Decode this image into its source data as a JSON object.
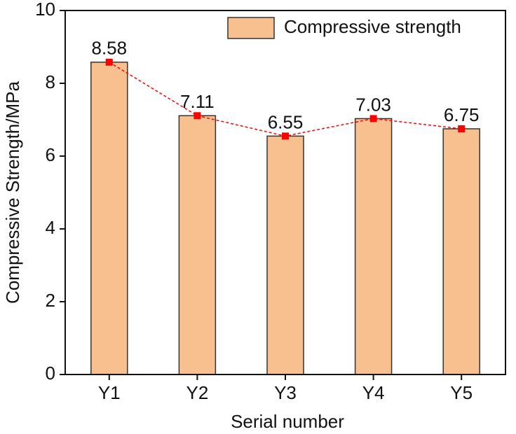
{
  "chart_data": {
    "type": "bar",
    "xlabel": "Serial number",
    "ylabel": "Compressive Strength/MPa",
    "categories": [
      "Y1",
      "Y2",
      "Y3",
      "Y4",
      "Y5"
    ],
    "series": [
      {
        "name": "Compressive strength",
        "color": "#f9c08f",
        "values": [
          8.58,
          7.11,
          6.55,
          7.03,
          6.75
        ]
      }
    ],
    "ylim": [
      0,
      10
    ],
    "yticks": [
      0,
      2,
      4,
      6,
      8,
      10
    ],
    "connector_line": true,
    "connector_color": "#ff0000",
    "legend": "upper right"
  }
}
